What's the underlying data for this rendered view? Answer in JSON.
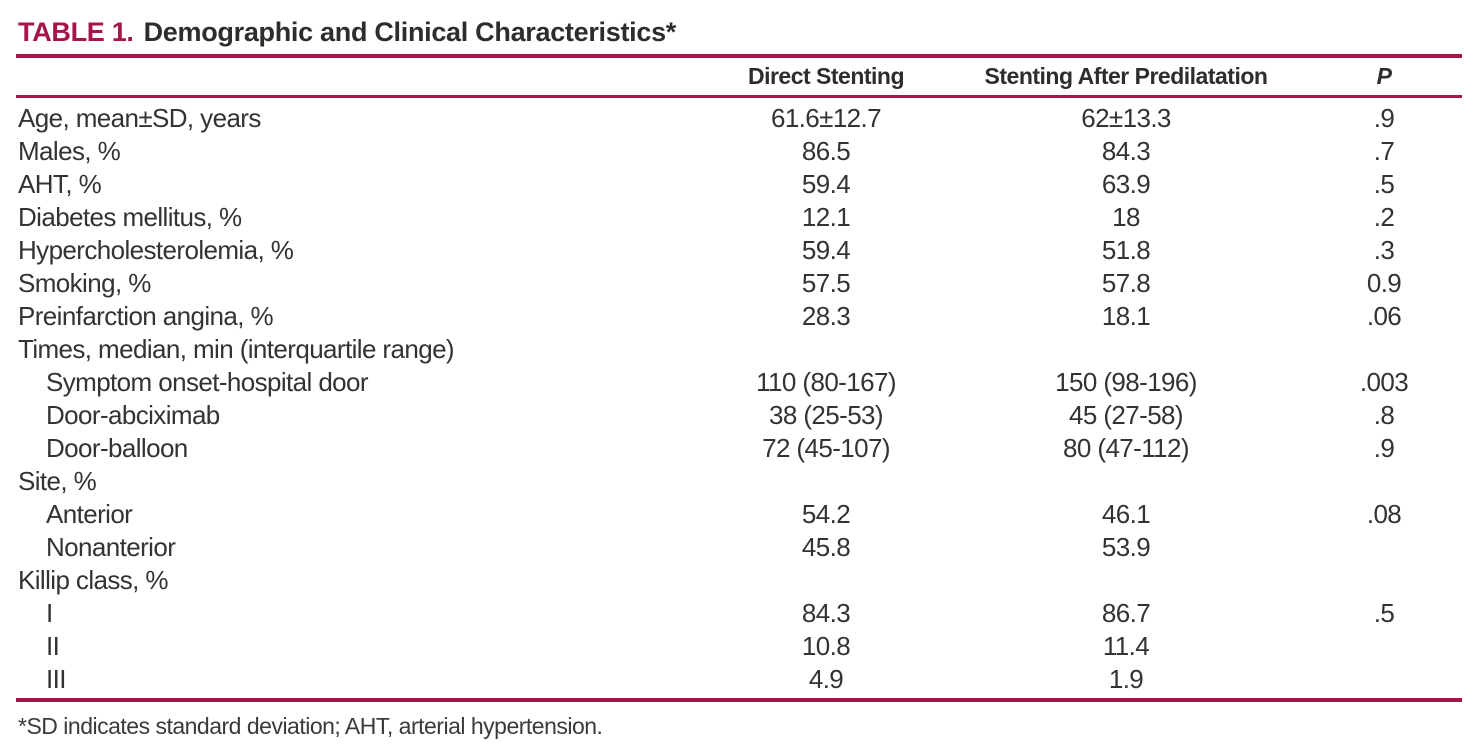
{
  "colors": {
    "accent": "#A5154B",
    "text": "#333333"
  },
  "table": {
    "title_label": "TABLE 1.",
    "title_text": "Demographic and Clinical Characteristics*",
    "columns": [
      "",
      "Direct Stenting",
      "Stenting After Predilatation",
      "P"
    ],
    "rows": [
      {
        "label": "Age, mean±SD, years",
        "indent": false,
        "direct": "61.6±12.7",
        "predilatation": "62±13.3",
        "p": ".9"
      },
      {
        "label": "Males, %",
        "indent": false,
        "direct": "86.5",
        "predilatation": "84.3",
        "p": ".7"
      },
      {
        "label": "AHT, %",
        "indent": false,
        "direct": "59.4",
        "predilatation": "63.9",
        "p": ".5"
      },
      {
        "label": "Diabetes mellitus, %",
        "indent": false,
        "direct": "12.1",
        "predilatation": "18",
        "p": ".2"
      },
      {
        "label": "Hypercholesterolemia, %",
        "indent": false,
        "direct": "59.4",
        "predilatation": "51.8",
        "p": ".3"
      },
      {
        "label": "Smoking, %",
        "indent": false,
        "direct": "57.5",
        "predilatation": "57.8",
        "p": "0.9"
      },
      {
        "label": "Preinfarction angina, %",
        "indent": false,
        "direct": "28.3",
        "predilatation": "18.1",
        "p": ".06"
      },
      {
        "label": "Times, median, min (interquartile range)",
        "indent": false,
        "direct": "",
        "predilatation": "",
        "p": ""
      },
      {
        "label": "Symptom onset-hospital door",
        "indent": true,
        "direct": "110 (80-167)",
        "predilatation": "150 (98-196)",
        "p": ".003"
      },
      {
        "label": "Door-abciximab",
        "indent": true,
        "direct": "38 (25-53)",
        "predilatation": "45 (27-58)",
        "p": ".8"
      },
      {
        "label": "Door-balloon",
        "indent": true,
        "direct": "72 (45-107)",
        "predilatation": "80 (47-112)",
        "p": ".9"
      },
      {
        "label": "Site, %",
        "indent": false,
        "direct": "",
        "predilatation": "",
        "p": ""
      },
      {
        "label": "Anterior",
        "indent": true,
        "direct": "54.2",
        "predilatation": "46.1",
        "p": ".08"
      },
      {
        "label": "Nonanterior",
        "indent": true,
        "direct": "45.8",
        "predilatation": "53.9",
        "p": ""
      },
      {
        "label": "Killip class, %",
        "indent": false,
        "direct": "",
        "predilatation": "",
        "p": ""
      },
      {
        "label": "I",
        "indent": true,
        "direct": "84.3",
        "predilatation": "86.7",
        "p": ".5"
      },
      {
        "label": "II",
        "indent": true,
        "direct": "10.8",
        "predilatation": "11.4",
        "p": ""
      },
      {
        "label": "III",
        "indent": true,
        "direct": "4.9",
        "predilatation": "1.9",
        "p": ""
      }
    ],
    "footnote": "*SD indicates standard deviation; AHT, arterial hypertension."
  }
}
